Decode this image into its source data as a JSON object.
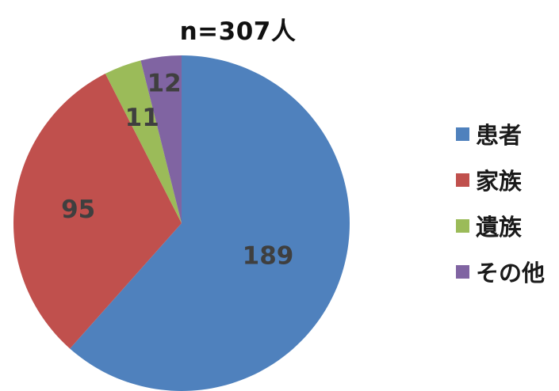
{
  "chart_data": {
    "type": "pie",
    "title": "n=307人",
    "categories": [
      "患者",
      "家族",
      "遺族",
      "その他"
    ],
    "values": [
      189,
      95,
      11,
      12
    ],
    "colors": [
      "#4f81bd",
      "#c0504d",
      "#9bbb59",
      "#8064a2"
    ],
    "legend_position": "right",
    "start_angle": "12 o'clock",
    "direction": "clockwise"
  }
}
